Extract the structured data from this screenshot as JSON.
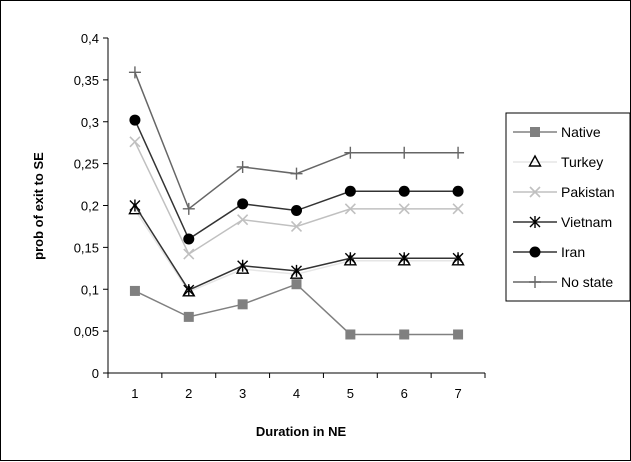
{
  "chart_data": {
    "type": "line",
    "title": "",
    "xlabel": "Duration in NE",
    "ylabel": "prob of exit to SE",
    "categories": [
      "1",
      "2",
      "3",
      "4",
      "5",
      "6",
      "7"
    ],
    "ylim": [
      0,
      0.4
    ],
    "yticks": [
      0,
      0.05,
      0.1,
      0.15,
      0.2,
      0.25,
      0.3,
      0.35,
      0.4
    ],
    "ytick_labels": [
      "0",
      "0,05",
      "0,1",
      "0,15",
      "0,2",
      "0,25",
      "0,3",
      "0,35",
      "0,4"
    ],
    "grid": false,
    "legend_position": "right",
    "series": [
      {
        "name": "Native",
        "values": [
          0.098,
          0.067,
          0.082,
          0.106,
          0.046,
          0.046,
          0.046
        ],
        "color": "#808080",
        "marker": "square"
      },
      {
        "name": "Turkey",
        "values": [
          0.195,
          0.097,
          0.124,
          0.118,
          0.134,
          0.134,
          0.134
        ],
        "color": "#e6e6e6",
        "marker": "triangle"
      },
      {
        "name": "Pakistan",
        "values": [
          0.276,
          0.142,
          0.183,
          0.175,
          0.196,
          0.196,
          0.196
        ],
        "color": "#c0c0c0",
        "marker": "x"
      },
      {
        "name": "Vietnam",
        "values": [
          0.2,
          0.099,
          0.128,
          0.122,
          0.137,
          0.137,
          0.137
        ],
        "color": "#333333",
        "marker": "asterisk"
      },
      {
        "name": "Iran",
        "values": [
          0.302,
          0.16,
          0.202,
          0.194,
          0.217,
          0.217,
          0.217
        ],
        "color": "#333333",
        "marker": "circle"
      },
      {
        "name": "No state",
        "values": [
          0.359,
          0.196,
          0.246,
          0.238,
          0.263,
          0.263,
          0.263
        ],
        "color": "#666666",
        "marker": "plus"
      }
    ]
  }
}
